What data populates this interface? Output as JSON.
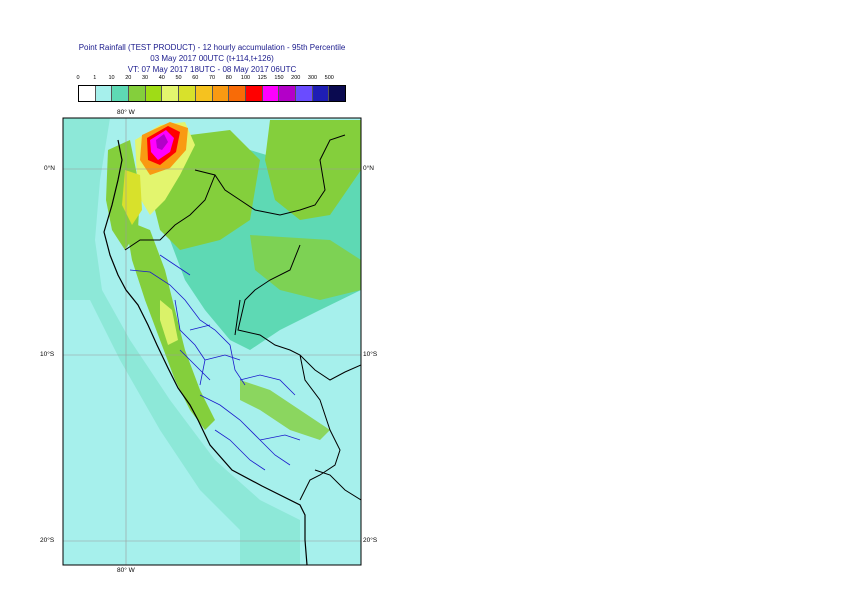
{
  "title": {
    "line1": "Point Rainfall (TEST PRODUCT) - 12 hourly accumulation - 95th Percentile",
    "line2": "03 May 2017 00UTC (t+114,t+126)",
    "line3": "VT: 07 May 2017 18UTC - 08 May 2017 06UTC"
  },
  "legend": {
    "ticks": [
      "0",
      "1",
      "10",
      "20",
      "30",
      "40",
      "50",
      "60",
      "70",
      "80",
      "100",
      "125",
      "150",
      "200",
      "300",
      "500"
    ],
    "colors": [
      "#ffffff",
      "#a6f0ec",
      "#5ed9b4",
      "#84cf3c",
      "#9fdc16",
      "#e3f56e",
      "#d8e12b",
      "#f5c21f",
      "#f99a12",
      "#f86b07",
      "#ff0000",
      "#ff00ff",
      "#b300c8",
      "#6a4cff",
      "#1e1eb4",
      "#0a0a50"
    ]
  },
  "map": {
    "lon_labels": [
      "80° W",
      "80° W"
    ],
    "lat_labels_left": [
      "0°N",
      "10°S",
      "20°S"
    ],
    "lat_labels_right": [
      "0°N",
      "10°S",
      "20°S"
    ],
    "ocean_color": "#a6f0ec",
    "land_light_color": "#5ed9b4",
    "land_green_color": "#84cf3c",
    "border_color": "#000000",
    "admin_color": "#1a1acc"
  }
}
